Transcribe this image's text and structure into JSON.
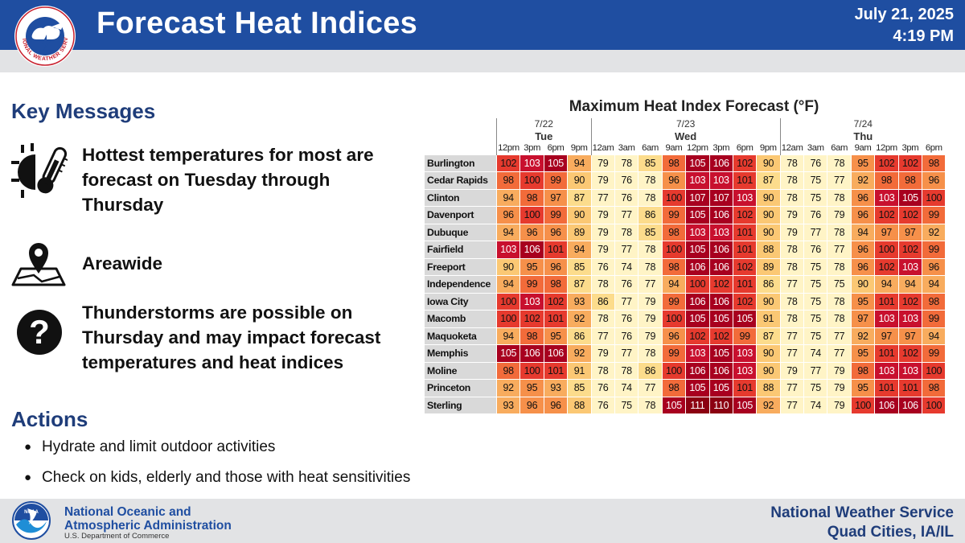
{
  "header": {
    "title": "Forecast Heat Indices",
    "date": "July 21, 2025",
    "time": "4:19 PM",
    "logo_text": "NATIONAL WEATHER SERVICE"
  },
  "key_messages": {
    "heading": "Key Messages",
    "items": [
      {
        "icon": "sun-thermometer-icon",
        "lines": [
          "Hottest temperatures for most are",
          "forecast on Tuesday through",
          "Thursday"
        ]
      },
      {
        "icon": "map-pin-icon",
        "lines": [
          "Areawide"
        ]
      },
      {
        "icon": "question-mark-icon",
        "lines": [
          "Thunderstorms are possible on",
          "Thursday and may impact forecast",
          "temperatures and heat indices"
        ]
      }
    ]
  },
  "actions": {
    "heading": "Actions",
    "items": [
      "Hydrate and limit outdoor activities",
      "Check on kids, elderly and those with heat sensitivities"
    ]
  },
  "footer": {
    "noaa_logo_text": "NOAA",
    "agency_line1": "National Oceanic and",
    "agency_line2": "Atmospheric Administration",
    "agency_sub": "U.S. Department of Commerce",
    "office_line1": "National Weather Service",
    "office_line2": "Quad Cities, IA/IL"
  },
  "chart_data": {
    "type": "table",
    "title": "Maximum Heat Index Forecast (°F)",
    "groups": [
      {
        "date": "7/22",
        "day": "Tue",
        "hours": [
          "12pm",
          "3pm",
          "6pm",
          "9pm"
        ]
      },
      {
        "date": "7/23",
        "day": "Wed",
        "hours": [
          "12am",
          "3am",
          "6am",
          "9am",
          "12pm",
          "3pm",
          "6pm",
          "9pm"
        ]
      },
      {
        "date": "7/24",
        "day": "Thu",
        "hours": [
          "12am",
          "3am",
          "6am",
          "9am",
          "12pm",
          "3pm",
          "6pm"
        ]
      }
    ],
    "rows": [
      {
        "city": "Burlington",
        "values": [
          102,
          103,
          105,
          94,
          79,
          78,
          85,
          98,
          105,
          106,
          102,
          90,
          78,
          76,
          78,
          95,
          102,
          102,
          98
        ]
      },
      {
        "city": "Cedar Rapids",
        "values": [
          98,
          100,
          99,
          90,
          79,
          76,
          78,
          96,
          103,
          103,
          101,
          87,
          78,
          75,
          77,
          92,
          98,
          98,
          96
        ]
      },
      {
        "city": "Clinton",
        "values": [
          94,
          98,
          97,
          87,
          77,
          76,
          78,
          100,
          107,
          107,
          103,
          90,
          78,
          75,
          78,
          96,
          103,
          105,
          100
        ]
      },
      {
        "city": "Davenport",
        "values": [
          96,
          100,
          99,
          90,
          79,
          77,
          86,
          99,
          105,
          106,
          102,
          90,
          79,
          76,
          79,
          96,
          102,
          102,
          99
        ]
      },
      {
        "city": "Dubuque",
        "values": [
          94,
          96,
          96,
          89,
          79,
          78,
          85,
          98,
          103,
          103,
          101,
          90,
          79,
          77,
          78,
          94,
          97,
          97,
          92
        ]
      },
      {
        "city": "Fairfield",
        "values": [
          103,
          106,
          101,
          94,
          79,
          77,
          78,
          100,
          105,
          106,
          101,
          88,
          78,
          76,
          77,
          96,
          100,
          102,
          99
        ]
      },
      {
        "city": "Freeport",
        "values": [
          90,
          95,
          96,
          85,
          76,
          74,
          78,
          98,
          106,
          106,
          102,
          89,
          78,
          75,
          78,
          96,
          102,
          103,
          96
        ]
      },
      {
        "city": "Independence",
        "values": [
          94,
          99,
          98,
          87,
          78,
          76,
          77,
          94,
          100,
          102,
          101,
          86,
          77,
          75,
          75,
          90,
          94,
          94,
          94
        ]
      },
      {
        "city": "Iowa City",
        "values": [
          100,
          103,
          102,
          93,
          86,
          77,
          79,
          99,
          106,
          106,
          102,
          90,
          78,
          75,
          78,
          95,
          101,
          102,
          98
        ]
      },
      {
        "city": "Macomb",
        "values": [
          100,
          102,
          101,
          92,
          78,
          76,
          79,
          100,
          105,
          105,
          105,
          91,
          78,
          75,
          78,
          97,
          103,
          103,
          99
        ]
      },
      {
        "city": "Maquoketa",
        "values": [
          94,
          98,
          95,
          86,
          77,
          76,
          79,
          96,
          102,
          102,
          99,
          87,
          77,
          75,
          77,
          92,
          97,
          97,
          94
        ]
      },
      {
        "city": "Memphis",
        "values": [
          105,
          106,
          106,
          92,
          79,
          77,
          78,
          99,
          103,
          105,
          103,
          90,
          77,
          74,
          77,
          95,
          101,
          102,
          99
        ]
      },
      {
        "city": "Moline",
        "values": [
          98,
          100,
          101,
          91,
          78,
          78,
          86,
          100,
          106,
          106,
          103,
          90,
          79,
          77,
          79,
          98,
          103,
          103,
          100
        ]
      },
      {
        "city": "Princeton",
        "values": [
          92,
          95,
          93,
          85,
          76,
          74,
          77,
          98,
          105,
          105,
          101,
          88,
          77,
          75,
          79,
          95,
          101,
          101,
          98
        ]
      },
      {
        "city": "Sterling",
        "values": [
          93,
          96,
          96,
          88,
          76,
          75,
          78,
          105,
          111,
          110,
          105,
          92,
          77,
          74,
          79,
          100,
          106,
          106,
          100
        ]
      }
    ],
    "color_scale": [
      {
        "min": 110,
        "color": "#8b0011"
      },
      {
        "min": 105,
        "color": "#a8001f"
      },
      {
        "min": 103,
        "color": "#c8102e"
      },
      {
        "min": 100,
        "color": "#e63a2e"
      },
      {
        "min": 98,
        "color": "#f26b3a"
      },
      {
        "min": 95,
        "color": "#f6904a"
      },
      {
        "min": 92,
        "color": "#f8ac5e"
      },
      {
        "min": 88,
        "color": "#fbc874"
      },
      {
        "min": 84,
        "color": "#fcdc8c"
      },
      {
        "min": 80,
        "color": "#fde9a8"
      },
      {
        "min": 0,
        "color": "#fff4c6"
      }
    ],
    "white_text_min": 103
  }
}
